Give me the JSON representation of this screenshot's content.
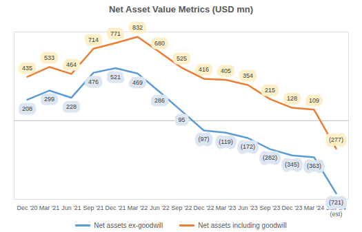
{
  "chart_data": {
    "type": "line",
    "title": "Net Asset Value Metrics (USD mn)",
    "categories": [
      "Dec '20",
      "Mar '21",
      "Jun '21",
      "Sep '21",
      "Dec '21",
      "Mar '22",
      "Jun '22",
      "Sep '22",
      "Dec '22",
      "Mar '23",
      "Jun '23",
      "Sep '23",
      "Dec '23",
      "Mar '24",
      "Jun '24 (est)"
    ],
    "series": [
      {
        "name": "Net assets ex-goodwill",
        "color": "#5b9bd5",
        "values": [
          208,
          299,
          228,
          476,
          521,
          469,
          286,
          95,
          -97,
          -119,
          -172,
          -282,
          -345,
          -363,
          -721
        ],
        "value_labels": [
          "208",
          "299",
          "228",
          "476",
          "521",
          "469",
          "286",
          "95",
          "(97)",
          "(119)",
          "(172)",
          "(282)",
          "(345)",
          "(363)",
          "(721)"
        ]
      },
      {
        "name": "Net assets including goodwill",
        "color": "#ed7d31",
        "values": [
          435,
          533,
          464,
          714,
          771,
          832,
          680,
          525,
          416,
          405,
          354,
          215,
          128,
          109,
          -277
        ],
        "value_labels": [
          "435",
          "533",
          "464",
          "714",
          "771",
          "832",
          "680",
          "525",
          "416",
          "405",
          "354",
          "215",
          "128",
          "109",
          "(277)"
        ]
      }
    ],
    "ylim": [
      -780,
      880
    ],
    "yticks": [
      0
    ],
    "grid": true,
    "data_labels": true,
    "tick_labels": "x",
    "legend": "bottom"
  }
}
